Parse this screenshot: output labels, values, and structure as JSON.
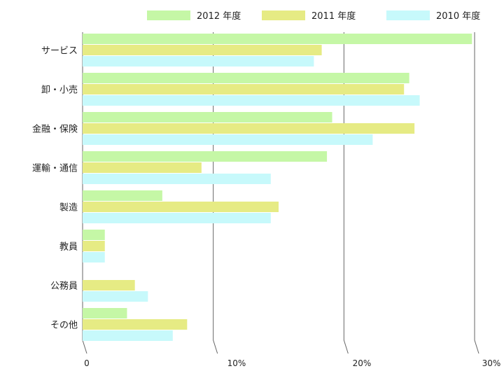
{
  "chart_data": {
    "type": "bar",
    "orientation": "horizontal",
    "categories": [
      "サービス",
      "卸・小売",
      "金融・保険",
      "運輸・通信",
      "製造",
      "教員",
      "公務員",
      "その他"
    ],
    "series": [
      {
        "name": "2012 年度",
        "color": "#c5f7a6",
        "values": [
          29.8,
          25.0,
          19.1,
          18.7,
          6.1,
          1.7,
          0,
          3.4
        ]
      },
      {
        "name": "2011 年度",
        "color": "#e6eb84",
        "values": [
          18.3,
          24.6,
          25.4,
          9.1,
          15.0,
          1.7,
          4.0,
          8.0
        ]
      },
      {
        "name": "2010 年度",
        "color": "#c7f9fb",
        "values": [
          17.7,
          25.8,
          22.2,
          14.4,
          14.4,
          1.7,
          5.0,
          6.9
        ]
      }
    ],
    "x_ticks": [
      "0",
      "10%",
      "20%",
      "30%"
    ],
    "x_tick_values": [
      0,
      10,
      20,
      30
    ],
    "xlim": [
      0,
      30
    ],
    "grid": true,
    "legend_position": "top"
  }
}
